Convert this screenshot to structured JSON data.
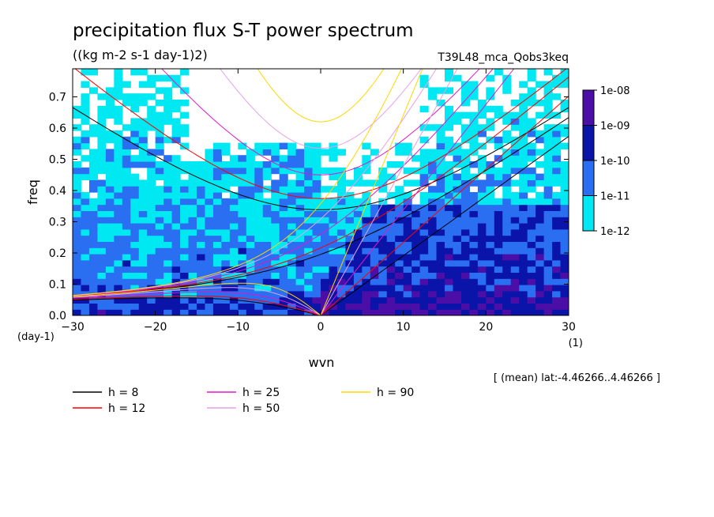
{
  "chart_data": {
    "type": "heatmap",
    "title": "precipitation flux S-T power spectrum",
    "subtitle": "((kg m-2 s-1 day-1)2)",
    "run_label": "T39L48_mca_Qobs3keq",
    "xlabel": "wvn",
    "ylabel": "freq",
    "x_unit": "(1)",
    "y_unit": "(day-1)",
    "xlim": [
      -30,
      30
    ],
    "ylim": [
      0,
      0.79
    ],
    "x_ticks": [
      -30,
      -20,
      -10,
      0,
      10,
      20,
      30
    ],
    "x_tick_labels": [
      "−30",
      "−20",
      "−10",
      "0",
      "10",
      "20",
      "30"
    ],
    "y_ticks": [
      0.0,
      0.1,
      0.2,
      0.3,
      0.4,
      0.5,
      0.6,
      0.7
    ],
    "y_tick_labels": [
      "0.0",
      "0.1",
      "0.2",
      "0.3",
      "0.4",
      "0.5",
      "0.6",
      "0.7"
    ],
    "colorbar": {
      "levels": [
        "1e-08",
        "1e-09",
        "1e-10",
        "1e-11",
        "1e-12"
      ],
      "colors": [
        "#4b0fa8",
        "#0a14a8",
        "#2a6ef2",
        "#00e8f2"
      ]
    },
    "dispersion_curves": [
      {
        "name": "h =  8",
        "h": 8,
        "color": "#000000"
      },
      {
        "name": "h = 12",
        "h": 12,
        "color": "#ff0000"
      },
      {
        "name": "h = 25",
        "h": 25,
        "color": "#e018c8"
      },
      {
        "name": "h = 50",
        "h": 50,
        "color": "#e6a0e6"
      },
      {
        "name": "h = 90",
        "h": 90,
        "color": "#ffd700"
      }
    ],
    "footnote": "[ (mean) lat:-4.46266..4.46266 ]"
  }
}
